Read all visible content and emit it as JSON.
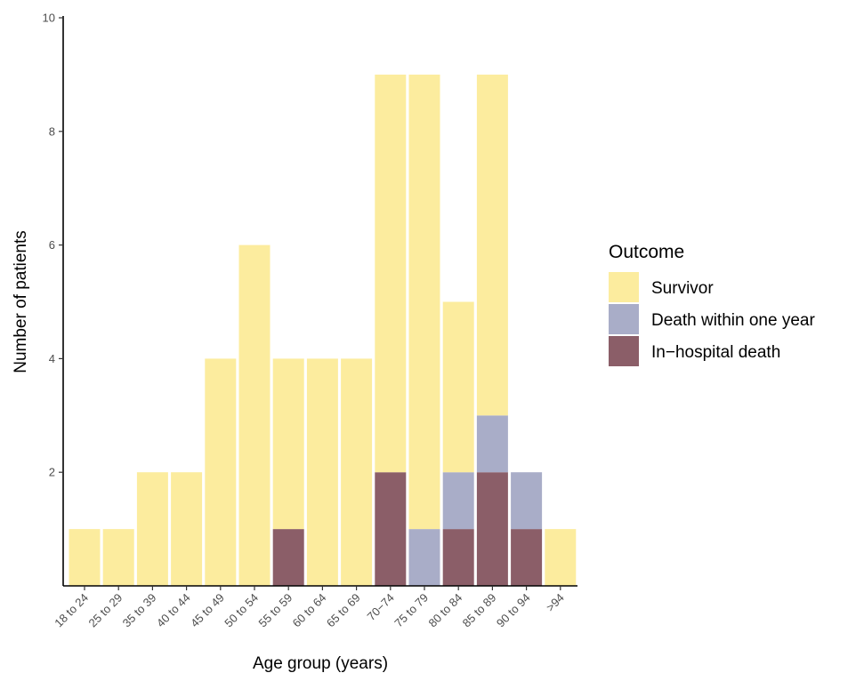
{
  "chart_data": {
    "type": "bar",
    "stacked": true,
    "xlabel": "Age group (years)",
    "ylabel": "Number of patients",
    "ylim": [
      0,
      10
    ],
    "yticks": [
      2,
      4,
      6,
      8,
      10
    ],
    "grid": false,
    "legend": {
      "title": "Outcome",
      "position": "right"
    },
    "categories": [
      "18 to 24",
      "25 to 29",
      "35 to 39",
      "40 to 44",
      "45 to 49",
      "50 to 54",
      "55 to 59",
      "60 to 64",
      "65 to 69",
      "70−74",
      "75 to 79",
      "80 to 84",
      "85 to 89",
      "90 to 94",
      ">94"
    ],
    "series": [
      {
        "name": "In−hospital death",
        "color": "#8b5e68",
        "values": [
          0,
          0,
          0,
          0,
          0,
          0,
          1,
          0,
          0,
          2,
          0,
          1,
          2,
          1,
          0
        ]
      },
      {
        "name": "Death within one year",
        "color": "#a9adc8",
        "values": [
          0,
          0,
          0,
          0,
          0,
          0,
          0,
          0,
          0,
          0,
          1,
          1,
          1,
          1,
          0
        ]
      },
      {
        "name": "Survivor",
        "color": "#fcec9e",
        "values": [
          1,
          1,
          2,
          2,
          4,
          6,
          3,
          4,
          4,
          7,
          8,
          3,
          6,
          0,
          1
        ]
      }
    ],
    "legend_order": [
      "Survivor",
      "Death within one year",
      "In−hospital death"
    ]
  }
}
